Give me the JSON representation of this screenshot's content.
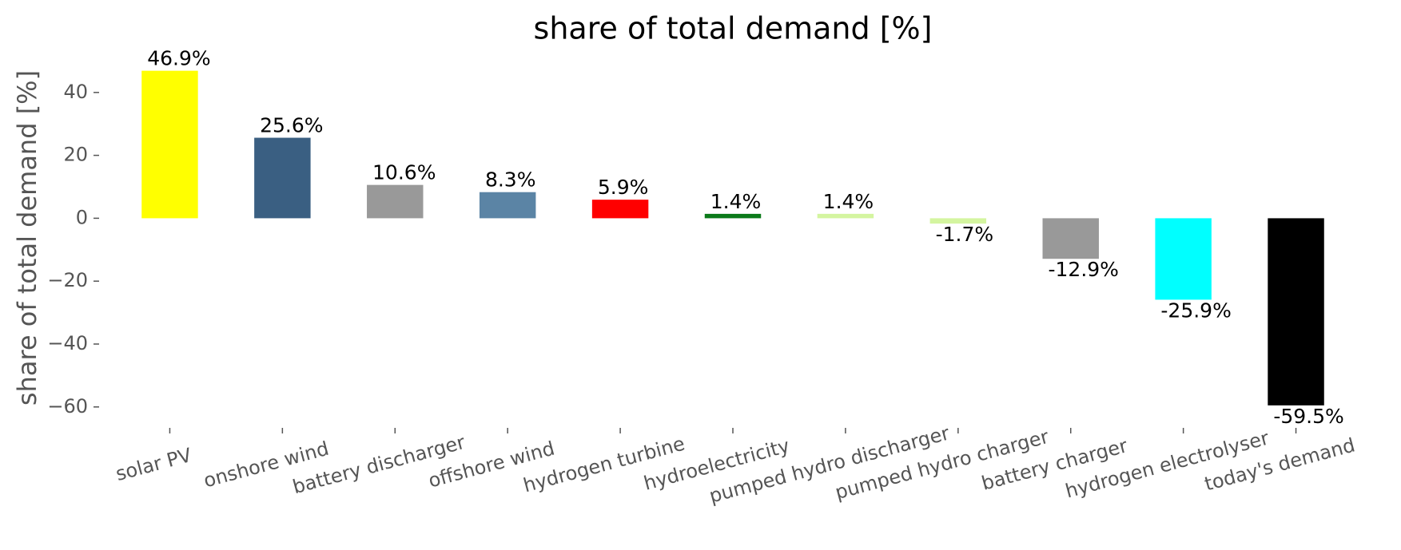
{
  "chart_data": {
    "type": "bar",
    "title": "share of total demand [%]",
    "y_label": "share of total demand [%]",
    "categories": [
      "solar PV",
      "onshore wind",
      "battery discharger",
      "offshore wind",
      "hydrogen turbine",
      "hydroelectricity",
      "pumped hydro discharger",
      "pumped hydro charger",
      "battery charger",
      "hydrogen electrolyser",
      "today's demand"
    ],
    "values": [
      46.9,
      25.6,
      10.6,
      8.3,
      5.9,
      1.4,
      1.4,
      -1.7,
      -12.9,
      -25.9,
      -59.5
    ],
    "value_labels": [
      "46.9%",
      "25.6%",
      "10.6%",
      "8.3%",
      "5.9%",
      "1.4%",
      "1.4%",
      "-1.7%",
      "-12.9%",
      "-25.9%",
      "-59.5%"
    ],
    "colors": [
      "#ffff00",
      "#3a5f82",
      "#999999",
      "#5b84a5",
      "#ff0000",
      "#0b7a1a",
      "#d4f5a0",
      "#d4f5a0",
      "#999999",
      "#00ffff",
      "#000000"
    ],
    "ylim": [
      -66.4,
      49.6
    ],
    "yticks": [
      {
        "value": -60,
        "label": "−60"
      },
      {
        "value": -40,
        "label": "−40"
      },
      {
        "value": -20,
        "label": "−20"
      },
      0,
      20,
      40
    ],
    "grid": false
  }
}
